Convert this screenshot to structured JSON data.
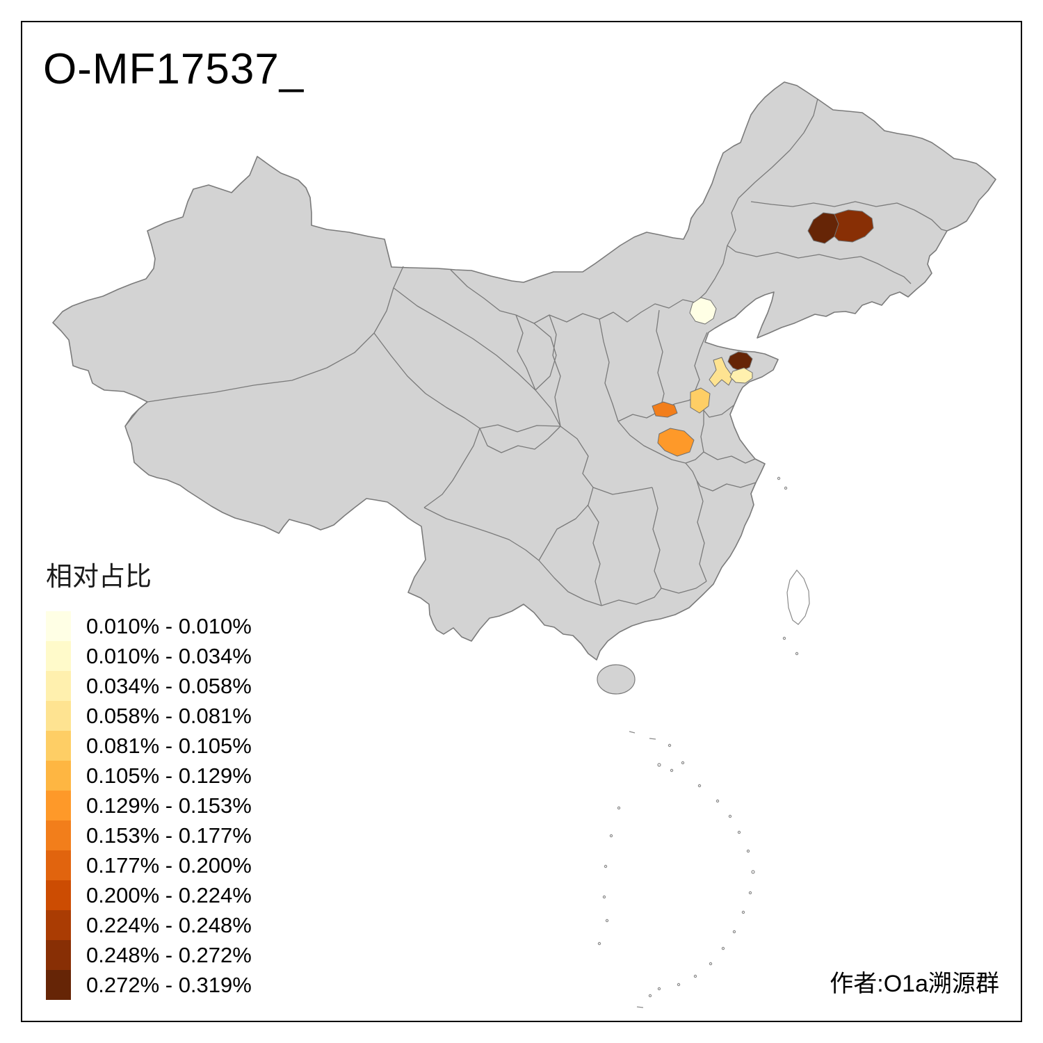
{
  "title": "O-MF17537_",
  "legend": {
    "title": "相对占比",
    "entries": [
      {
        "label": "0.010% - 0.010%",
        "color": "#FFFFE5"
      },
      {
        "label": "0.010% - 0.034%",
        "color": "#FFFACA"
      },
      {
        "label": "0.034% - 0.058%",
        "color": "#FFF0AE"
      },
      {
        "label": "0.058% - 0.081%",
        "color": "#FEE391"
      },
      {
        "label": "0.081% - 0.105%",
        "color": "#FECE65"
      },
      {
        "label": "0.105% - 0.129%",
        "color": "#FEB642"
      },
      {
        "label": "0.129% - 0.153%",
        "color": "#FE9929"
      },
      {
        "label": "0.153% - 0.177%",
        "color": "#F27E1B"
      },
      {
        "label": "0.177% - 0.200%",
        "color": "#E1640E"
      },
      {
        "label": "0.200% - 0.224%",
        "color": "#CC4C02"
      },
      {
        "label": "0.224% - 0.248%",
        "color": "#AA3C03"
      },
      {
        "label": "0.248% - 0.272%",
        "color": "#882F05"
      },
      {
        "label": "0.272% - 0.319%",
        "color": "#662506"
      }
    ]
  },
  "attribution": "作者:O1a溯源群",
  "map": {
    "base_fill": "#D3D3D3",
    "boundary_color": "#7A7A7A",
    "background": "#FFFFFF",
    "regions": [
      {
        "name": "northeast-region-west",
        "color": "#662506"
      },
      {
        "name": "northeast-region-east",
        "color": "#882F05"
      },
      {
        "name": "beijing-area-region",
        "color": "#FFFFE5"
      },
      {
        "name": "shandong-north-region",
        "color": "#662506"
      },
      {
        "name": "shandong-central-region",
        "color": "#FEE391"
      },
      {
        "name": "shandong-east-region",
        "color": "#FFF0AE"
      },
      {
        "name": "shandong-southwest-region",
        "color": "#FECE65"
      },
      {
        "name": "henan-north-region",
        "color": "#F27E1B"
      },
      {
        "name": "henan-central-region",
        "color": "#FE9929"
      }
    ]
  }
}
